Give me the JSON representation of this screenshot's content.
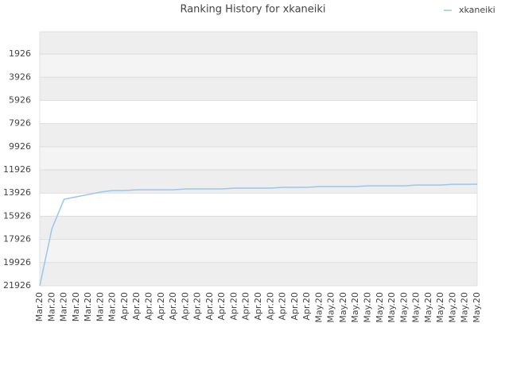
{
  "chart_data": {
    "type": "line",
    "title": "Ranking History for xkaneiki",
    "categories": [
      "Mar.20",
      "Mar.20",
      "Mar.20",
      "Mar.20",
      "Mar.20",
      "Mar.20",
      "Mar.20",
      "Apr.20",
      "Apr.20",
      "Apr.20",
      "Apr.20",
      "Apr.20",
      "Apr.20",
      "Apr.20",
      "Apr.20",
      "Apr.20",
      "Apr.20",
      "Apr.20",
      "Apr.20",
      "Apr.20",
      "Apr.20",
      "Apr.20",
      "Apr.20",
      "May.20",
      "May.20",
      "May.20",
      "May.20",
      "May.20",
      "May.20",
      "May.20",
      "May.20",
      "May.20",
      "May.20",
      "May.20",
      "May.20",
      "May.20",
      "May.20"
    ],
    "series": [
      {
        "name": "xkaneiki",
        "color": "#99c6f0",
        "values": [
          21926,
          17000,
          14460,
          14250,
          14050,
          13840,
          13700,
          13700,
          13640,
          13640,
          13640,
          13640,
          13570,
          13570,
          13570,
          13570,
          13500,
          13500,
          13500,
          13500,
          13430,
          13430,
          13430,
          13360,
          13360,
          13360,
          13360,
          13300,
          13300,
          13300,
          13300,
          13230,
          13230,
          13230,
          13160,
          13160,
          13160
        ]
      }
    ],
    "ylim": [
      21926,
      0
    ],
    "yticks": [
      1926,
      3926,
      5926,
      7926,
      9926,
      11926,
      13926,
      15926,
      17926,
      19926,
      21926
    ],
    "grid": true,
    "legend": "top-right"
  }
}
